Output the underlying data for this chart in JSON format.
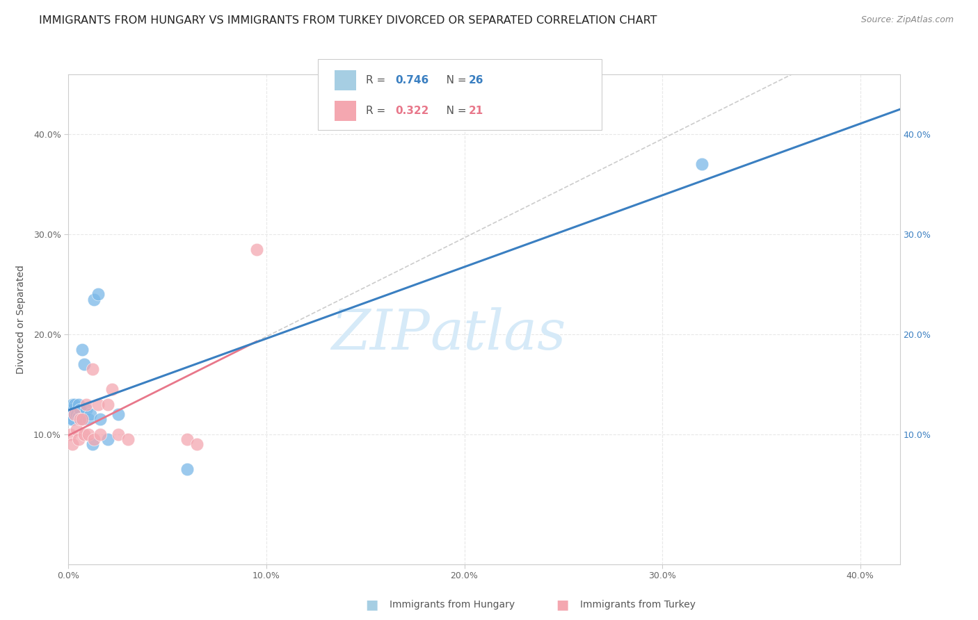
{
  "title": "IMMIGRANTS FROM HUNGARY VS IMMIGRANTS FROM TURKEY DIVORCED OR SEPARATED CORRELATION CHART",
  "source": "Source: ZipAtlas.com",
  "ylabel": "Divorced or Separated",
  "xlim": [
    0.0,
    0.42
  ],
  "ylim": [
    -0.03,
    0.46
  ],
  "xticks": [
    0.0,
    0.1,
    0.2,
    0.3,
    0.4
  ],
  "yticks": [
    0.1,
    0.2,
    0.3,
    0.4
  ],
  "xtick_labels": [
    "0.0%",
    "10.0%",
    "20.0%",
    "30.0%",
    "40.0%"
  ],
  "left_ytick_labels": [
    "10.0%",
    "20.0%",
    "30.0%",
    "40.0%"
  ],
  "right_ytick_labels": [
    "10.0%",
    "20.0%",
    "30.0%",
    "40.0%"
  ],
  "hungary_color": "#7ab8e8",
  "turkey_color": "#f4a7b0",
  "hungary_line_color": "#3a7fc1",
  "turkey_line_color": "#e8778a",
  "dashed_line_color": "#cccccc",
  "watermark_zip": "ZIP",
  "watermark_atlas": "atlas",
  "watermark_color": "#d6eaf8",
  "grid_color": "#e8e8e8",
  "background_color": "#ffffff",
  "title_fontsize": 11.5,
  "axis_label_fontsize": 10,
  "tick_fontsize": 9,
  "source_fontsize": 9,
  "hungary_x": [
    0.001,
    0.001,
    0.001,
    0.002,
    0.002,
    0.002,
    0.003,
    0.003,
    0.004,
    0.005,
    0.005,
    0.006,
    0.006,
    0.007,
    0.008,
    0.009,
    0.01,
    0.011,
    0.012,
    0.013,
    0.015,
    0.016,
    0.02,
    0.025,
    0.06,
    0.32
  ],
  "hungary_y": [
    0.125,
    0.12,
    0.115,
    0.13,
    0.125,
    0.115,
    0.13,
    0.12,
    0.12,
    0.13,
    0.118,
    0.125,
    0.115,
    0.185,
    0.17,
    0.125,
    0.115,
    0.12,
    0.09,
    0.235,
    0.24,
    0.115,
    0.095,
    0.12,
    0.065,
    0.37
  ],
  "turkey_x": [
    0.001,
    0.002,
    0.003,
    0.004,
    0.005,
    0.006,
    0.007,
    0.008,
    0.009,
    0.01,
    0.012,
    0.013,
    0.015,
    0.016,
    0.02,
    0.022,
    0.025,
    0.03,
    0.06,
    0.065,
    0.095
  ],
  "turkey_y": [
    0.1,
    0.09,
    0.12,
    0.105,
    0.095,
    0.115,
    0.115,
    0.1,
    0.13,
    0.1,
    0.165,
    0.095,
    0.13,
    0.1,
    0.13,
    0.145,
    0.1,
    0.095,
    0.095,
    0.09,
    0.285
  ],
  "legend_color_hungary": "#a6cee3",
  "legend_color_turkey": "#f4a7b0",
  "legend_border_color": "#cccccc",
  "legend_R_color_hungary": "#3a7fc1",
  "legend_R_color_turkey": "#e8778a",
  "legend_N_color_hungary": "#3a7fc1",
  "legend_N_color_turkey": "#e8778a"
}
